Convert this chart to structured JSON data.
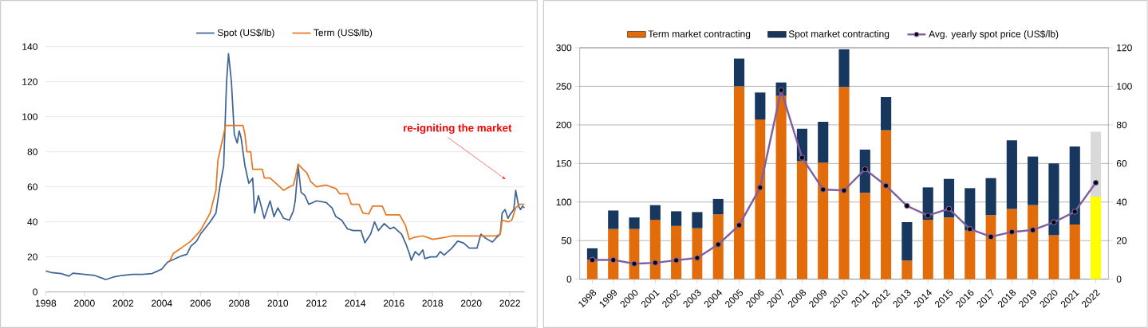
{
  "chart_data": [
    {
      "type": "line",
      "xlim": [
        1998,
        2022.75
      ],
      "xticks": [
        1998,
        2000,
        2002,
        2004,
        2006,
        2008,
        2010,
        2012,
        2014,
        2016,
        2018,
        2020,
        2022
      ],
      "ylim": [
        0,
        140
      ],
      "yticks": [
        0,
        20,
        40,
        60,
        80,
        100,
        120,
        140
      ],
      "grid": "y",
      "legend": "top",
      "line_style": "solid",
      "series": [
        {
          "name": "Spot (US$/lb)",
          "color": "#3e6496",
          "x": [
            1998,
            1998.3,
            1998.8,
            1999.2,
            1999.4,
            2000,
            2000.5,
            2001,
            2001.1,
            2001.5,
            2002,
            2002.5,
            2003,
            2003.5,
            2003.7,
            2004,
            2004.3,
            2004.6,
            2005,
            2005.3,
            2005.5,
            2005.8,
            2006,
            2006.5,
            2006.8,
            2007,
            2007.2,
            2007.35,
            2007.45,
            2007.6,
            2007.75,
            2007.9,
            2008,
            2008.1,
            2008.3,
            2008.5,
            2008.7,
            2008.8,
            2009,
            2009.3,
            2009.6,
            2009.8,
            2010,
            2010.3,
            2010.6,
            2010.8,
            2010.9,
            2011.05,
            2011.2,
            2011.4,
            2011.6,
            2012,
            2012.5,
            2012.8,
            2013,
            2013.3,
            2013.6,
            2013.9,
            2014.3,
            2014.5,
            2014.8,
            2015,
            2015.2,
            2015.5,
            2015.8,
            2016,
            2016.4,
            2016.6,
            2016.8,
            2016.9,
            2017.1,
            2017.3,
            2017.5,
            2017.6,
            2017.9,
            2018.2,
            2018.4,
            2018.6,
            2019,
            2019.3,
            2019.6,
            2019.9,
            2020.3,
            2020.5,
            2020.7,
            2021.0,
            2021.1,
            2021.3,
            2021.5,
            2021.6,
            2021.75,
            2021.9,
            2022.0,
            2022.2,
            2022.3,
            2022.45,
            2022.55,
            2022.65,
            2022.75
          ],
          "values": [
            12,
            11,
            10.5,
            9,
            10.7,
            10,
            9.5,
            7.5,
            7,
            8.5,
            9.5,
            10,
            10,
            10.5,
            11.5,
            13,
            17,
            18.5,
            20.5,
            21.5,
            26,
            29,
            33,
            40,
            45,
            60,
            72,
            120,
            136,
            120,
            90,
            85,
            92,
            88,
            72,
            62,
            65,
            45,
            55,
            42,
            52,
            43,
            48,
            42,
            41,
            46,
            52,
            72,
            57,
            55,
            50,
            52,
            51,
            48,
            43,
            41,
            36,
            35,
            35,
            28,
            33,
            40,
            35,
            39,
            36,
            37,
            33,
            28,
            22,
            18,
            23,
            21,
            24,
            19,
            20,
            20,
            23,
            21,
            25,
            29,
            28,
            25,
            25,
            33,
            31,
            29,
            28.5,
            31,
            33,
            45,
            47,
            42,
            44,
            47,
            58,
            49,
            47,
            49,
            48
          ]
        },
        {
          "name": "Term (US$/lb)",
          "color": "#e87722",
          "x": [
            2004.4,
            2004.6,
            2005,
            2005.5,
            2006,
            2006.5,
            2006.8,
            2006.9,
            2007.1,
            2007.3,
            2008.2,
            2008.3,
            2008.4,
            2008.6,
            2008.7,
            2009.2,
            2009.3,
            2009.6,
            2010,
            2010.3,
            2010.6,
            2010.8,
            2010.9,
            2011.05,
            2011.3,
            2011.5,
            2011.7,
            2012,
            2012.5,
            2013,
            2013.2,
            2013.6,
            2013.8,
            2014.2,
            2014.4,
            2014.7,
            2014.9,
            2015.4,
            2015.6,
            2016.3,
            2016.6,
            2016.8,
            2017,
            2017.5,
            2018,
            2018.6,
            2019,
            2021.3,
            2021.5,
            2021.6,
            2021.9,
            2022.1,
            2022.3,
            2022.5,
            2022.75
          ],
          "values": [
            17.5,
            22,
            25,
            29,
            35,
            45,
            58,
            75,
            85,
            95,
            95,
            90,
            80,
            80,
            70,
            70,
            65,
            65,
            61,
            58,
            60,
            61,
            65,
            73,
            70,
            68,
            63,
            60,
            61,
            59,
            56,
            56,
            50,
            50,
            45,
            44.5,
            49,
            49,
            44,
            44,
            38,
            30,
            31,
            32,
            30,
            31,
            32,
            32,
            33,
            41,
            40,
            41,
            48,
            50,
            50
          ]
        }
      ],
      "annotations": [
        "re-igniting the market"
      ]
    },
    {
      "type": "bar",
      "stacked": true,
      "categories": [
        "1998",
        "1999",
        "2000",
        "2001",
        "2002",
        "2003",
        "2004",
        "2005",
        "2006",
        "2007",
        "2008",
        "2009",
        "2010",
        "2011",
        "2012",
        "2013",
        "2014",
        "2015",
        "2016",
        "2017",
        "2018",
        "2019",
        "2020",
        "2021",
        "2022"
      ],
      "ylim": [
        0,
        300
      ],
      "yticks": [
        0,
        50,
        100,
        150,
        200,
        250,
        300
      ],
      "y2lim": [
        0,
        120
      ],
      "y2ticks": [
        0,
        20,
        40,
        60,
        80,
        100,
        120
      ],
      "grid": "y",
      "legend": "top",
      "series": [
        {
          "name": "Term market contracting",
          "colors": [
            "#e36c0a",
            "#e36c0a",
            "#e36c0a",
            "#e36c0a",
            "#e36c0a",
            "#e36c0a",
            "#e36c0a",
            "#e36c0a",
            "#e36c0a",
            "#e36c0a",
            "#e36c0a",
            "#e36c0a",
            "#e36c0a",
            "#e36c0a",
            "#e36c0a",
            "#e36c0a",
            "#e36c0a",
            "#e36c0a",
            "#e36c0a",
            "#e36c0a",
            "#e36c0a",
            "#e36c0a",
            "#e36c0a",
            "#e36c0a",
            "#ffff00"
          ],
          "values": [
            25,
            65,
            65,
            77,
            69,
            66,
            84,
            250,
            207,
            238,
            153,
            151,
            249,
            112,
            193,
            24,
            77,
            80,
            63,
            83,
            91,
            96,
            57,
            71,
            107
          ]
        },
        {
          "name": "Spot market contracting",
          "colors": [
            "#17375e",
            "#17375e",
            "#17375e",
            "#17375e",
            "#17375e",
            "#17375e",
            "#17375e",
            "#17375e",
            "#17375e",
            "#17375e",
            "#17375e",
            "#17375e",
            "#17375e",
            "#17375e",
            "#17375e",
            "#17375e",
            "#17375e",
            "#17375e",
            "#17375e",
            "#17375e",
            "#17375e",
            "#17375e",
            "#17375e",
            "#17375e",
            "#d9d9d9"
          ],
          "values": [
            15,
            24,
            15,
            19,
            19,
            21,
            20,
            36,
            35,
            17,
            42,
            53,
            49,
            56,
            43,
            50,
            42,
            50,
            55,
            48,
            89,
            63,
            93,
            101,
            84
          ]
        },
        {
          "name": "Avg. yearly spot price (US$/lb)",
          "type": "line",
          "axis": "y2",
          "color": "#7f5fa0",
          "marker": "circle",
          "values": [
            10,
            10,
            8,
            8.5,
            9.8,
            11,
            18,
            28,
            47.5,
            98,
            63,
            46.5,
            46,
            57,
            48.5,
            38,
            33,
            36.5,
            26,
            22,
            24.5,
            25.5,
            29.5,
            35,
            50
          ]
        }
      ]
    }
  ]
}
